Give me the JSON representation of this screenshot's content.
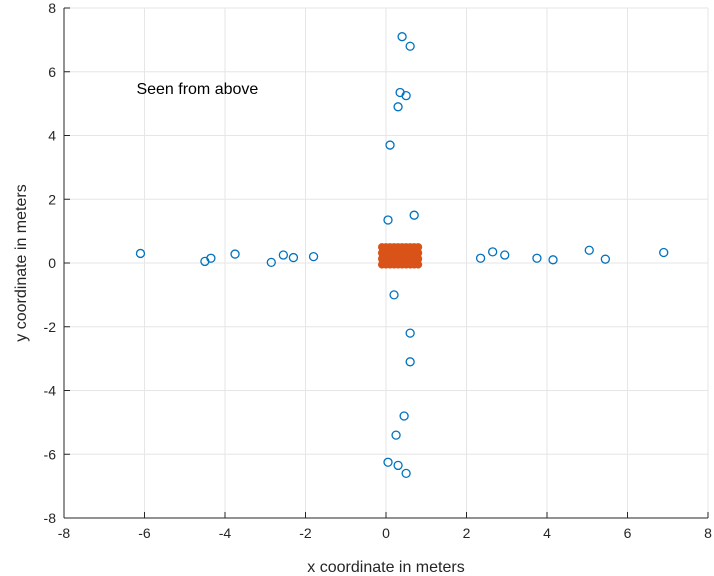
{
  "chart_data": {
    "type": "scatter",
    "xlabel": "x coordinate in meters",
    "ylabel": "y coordinate in meters",
    "xlim": [
      -8,
      8
    ],
    "ylim": [
      -8,
      8
    ],
    "xticks": [
      "-8",
      "-6",
      "-4",
      "-2",
      "0",
      "2",
      "4",
      "6",
      "8"
    ],
    "yticks": [
      "8",
      "6",
      "4",
      "2",
      "0",
      "-2",
      "-4",
      "-6",
      "-8"
    ],
    "grid": true,
    "annotation": "Seen from above",
    "colors": {
      "scatter": "#0072bd",
      "cluster": "#d95319",
      "grid": "#e6e6e6",
      "axis": "#262626"
    },
    "series": [
      {
        "marker": "open-circle",
        "points": [
          [
            -6.1,
            0.3
          ],
          [
            -4.5,
            0.05
          ],
          [
            -4.35,
            0.15
          ],
          [
            -3.75,
            0.28
          ],
          [
            -2.85,
            0.02
          ],
          [
            -2.55,
            0.25
          ],
          [
            -2.3,
            0.17
          ],
          [
            -1.8,
            0.2
          ],
          [
            2.35,
            0.15
          ],
          [
            2.65,
            0.35
          ],
          [
            2.95,
            0.25
          ],
          [
            3.75,
            0.15
          ],
          [
            4.15,
            0.1
          ],
          [
            5.05,
            0.4
          ],
          [
            5.45,
            0.12
          ],
          [
            6.9,
            0.33
          ],
          [
            0.4,
            7.1
          ],
          [
            0.6,
            6.8
          ],
          [
            0.35,
            5.35
          ],
          [
            0.5,
            5.25
          ],
          [
            0.3,
            4.9
          ],
          [
            0.1,
            3.7
          ],
          [
            0.05,
            1.35
          ],
          [
            0.7,
            1.5
          ],
          [
            0.2,
            -1.0
          ],
          [
            0.6,
            -2.2
          ],
          [
            0.6,
            -3.1
          ],
          [
            0.45,
            -4.8
          ],
          [
            0.25,
            -5.4
          ],
          [
            0.05,
            -6.25
          ],
          [
            0.3,
            -6.35
          ],
          [
            0.5,
            -6.6
          ]
        ]
      },
      {
        "marker": "filled-dense-cluster",
        "bounds": {
          "x": [
            -0.1,
            0.8
          ],
          "y": [
            -0.05,
            0.5
          ]
        }
      }
    ]
  }
}
